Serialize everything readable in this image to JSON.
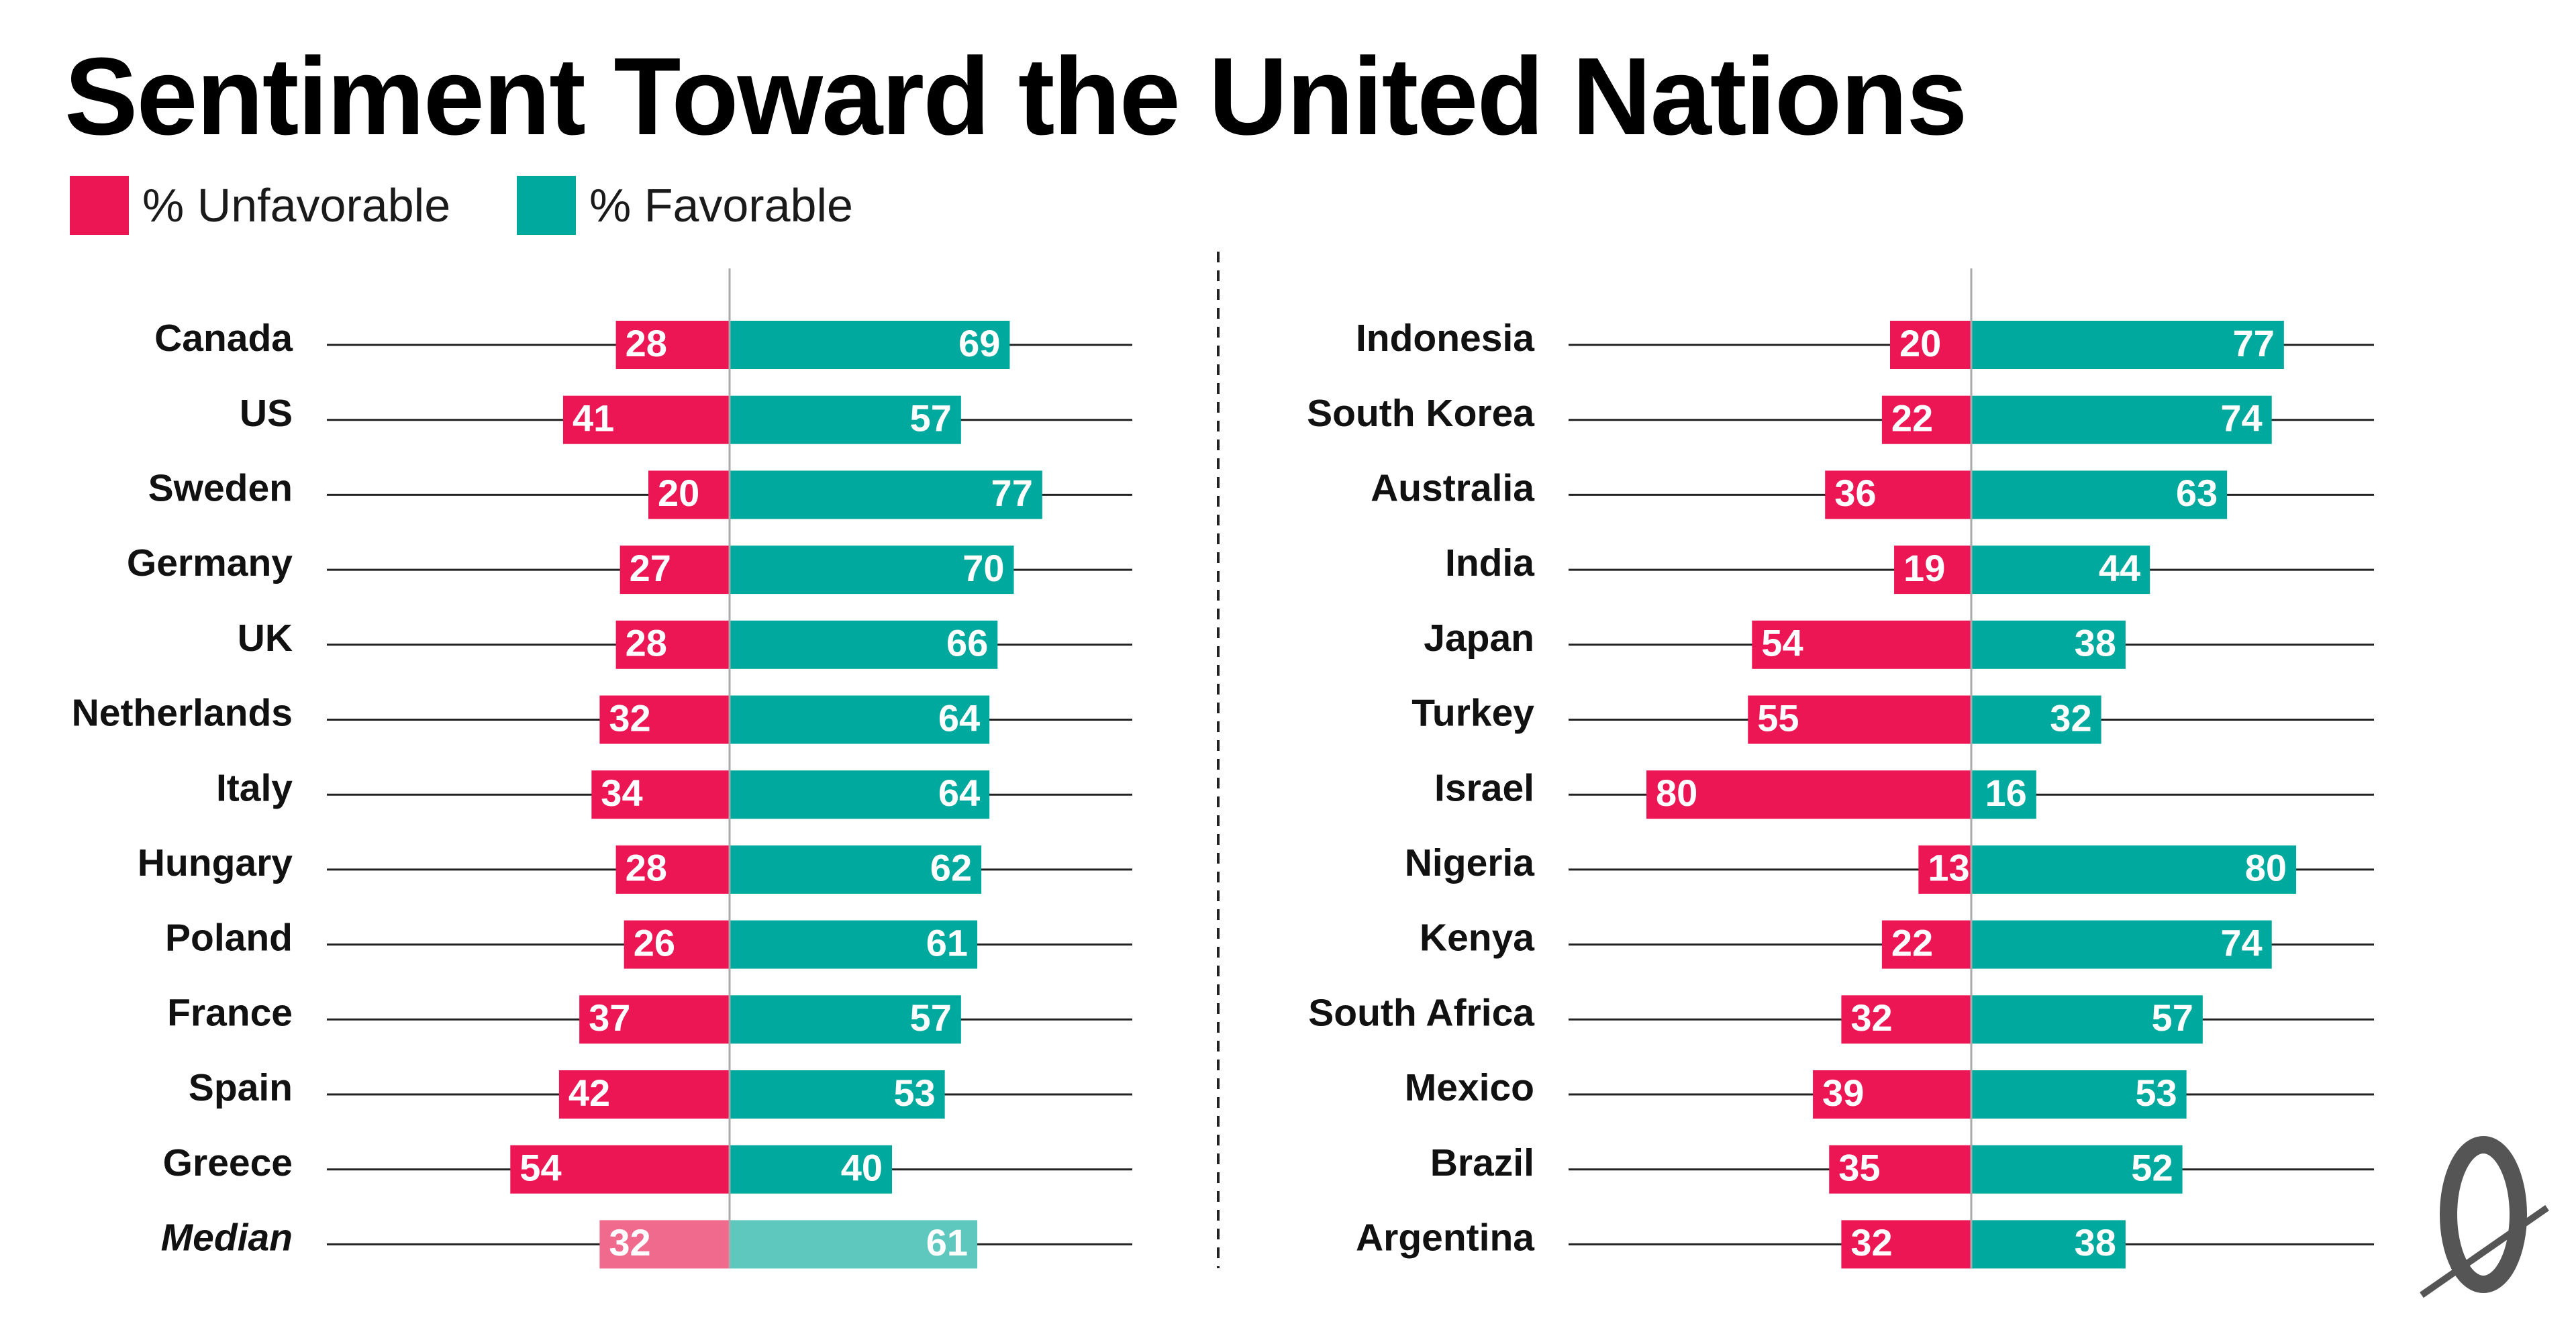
{
  "chart_data": {
    "type": "bar",
    "title": "Sentiment Toward the United Nations",
    "legend": [
      {
        "name": "% Unfavorable",
        "color": "#ed1654"
      },
      {
        "name": "% Favorable",
        "color": "#00a99d"
      }
    ],
    "xlim": [
      0,
      100
    ],
    "panels": [
      {
        "categories": [
          "Canada",
          "US",
          "Sweden",
          "Germany",
          "UK",
          "Netherlands",
          "Italy",
          "Hungary",
          "Poland",
          "France",
          "Spain",
          "Greece",
          "Median"
        ],
        "series": [
          {
            "name": "% Unfavorable",
            "values": [
              28,
              41,
              20,
              27,
              28,
              32,
              34,
              28,
              26,
              37,
              42,
              54,
              32
            ]
          },
          {
            "name": "% Favorable",
            "values": [
              69,
              57,
              77,
              70,
              66,
              64,
              64,
              62,
              61,
              57,
              53,
              40,
              61
            ]
          }
        ]
      },
      {
        "categories": [
          "Indonesia",
          "South Korea",
          "Australia",
          "India",
          "Japan",
          "Turkey",
          "Israel",
          "Nigeria",
          "Kenya",
          "South Africa",
          "Mexico",
          "Brazil",
          "Argentina"
        ],
        "series": [
          {
            "name": "% Unfavorable",
            "values": [
              20,
              22,
              36,
              19,
              54,
              55,
              80,
              13,
              22,
              32,
              39,
              35,
              32
            ]
          },
          {
            "name": "% Favorable",
            "values": [
              77,
              74,
              63,
              44,
              38,
              32,
              16,
              80,
              74,
              57,
              53,
              52,
              38
            ]
          }
        ]
      }
    ]
  },
  "colors": {
    "unfavorable": "#ed1654",
    "favorable": "#00a99d",
    "median_unfavorable": "#f06a8e",
    "median_favorable": "#5ec8bf"
  },
  "logo": {
    "icon": "slashed-zero-logo-icon"
  }
}
